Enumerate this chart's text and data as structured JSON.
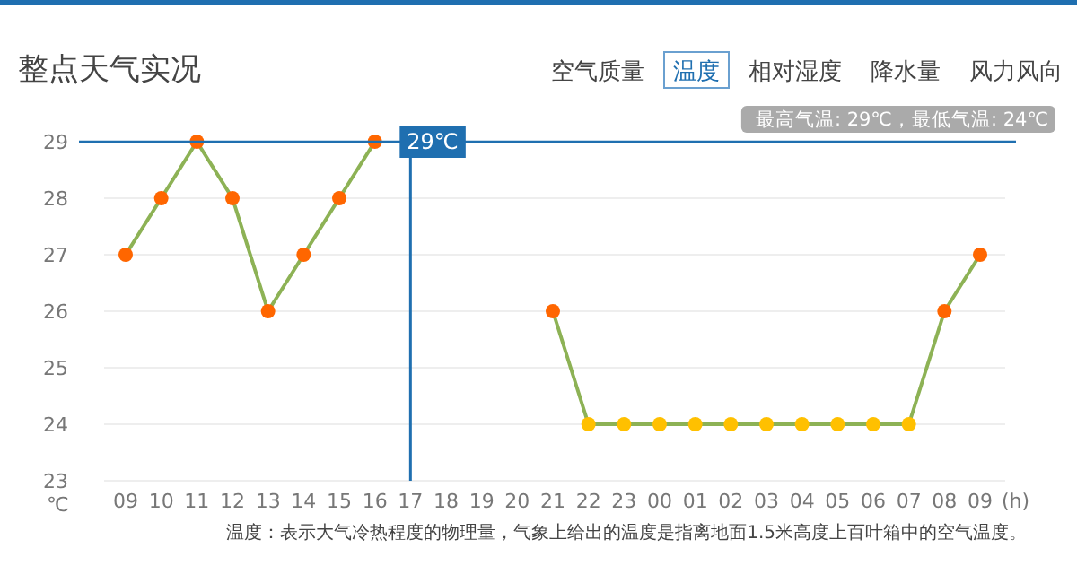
{
  "chart_data": {
    "type": "line",
    "title": "整点天气实况",
    "subtitle": "最高气温: 29℃，最低气温: 24℃",
    "annotations": [
      "空气质量",
      "温度",
      "相对湿度",
      "降水量",
      "风力风向",
      "温度：表示大气冷热程度的物理量，气象上给出的温度是指离地面1.5米高度上百叶箱中的空气温度。"
    ],
    "xlabel": "(h)",
    "ylabel": "℃",
    "categories": [
      "09",
      "10",
      "11",
      "12",
      "13",
      "14",
      "15",
      "16",
      "17",
      "18",
      "19",
      "20",
      "21",
      "22",
      "23",
      "00",
      "01",
      "02",
      "03",
      "04",
      "05",
      "06",
      "07",
      "08",
      "09"
    ],
    "series": [
      {
        "color": "#8db255",
        "values": [
          27,
          28,
          29,
          28,
          26,
          27,
          28,
          29,
          null,
          null,
          null,
          null,
          26,
          24,
          24,
          24,
          24,
          24,
          24,
          24,
          24,
          24,
          24,
          26,
          27
        ],
        "colors": [
          "#ff6600",
          "#ff6600",
          "#ff6600",
          "#ff6600",
          "#ff6600",
          "#ff6600",
          "#ff6600",
          "#ff6600",
          null,
          null,
          null,
          null,
          "#ff6600",
          "#ffc000",
          "#ffc000",
          "#ffc000",
          "#ffc000",
          "#ffc000",
          "#ffc000",
          "#ffc000",
          "#ffc000",
          "#ffc000",
          "#ffc000",
          "#ff6600",
          "#ff6600"
        ]
      }
    ],
    "ylim": [
      23,
      29
    ],
    "yticks": [
      23,
      24,
      25,
      26,
      27,
      28,
      29
    ],
    "grid": "y",
    "marker": "circle",
    "line_style": "solid",
    "ref_lines": [
      {
        "axis": "x",
        "value": "17",
        "color": "#1f6fb0"
      },
      {
        "axis": "y",
        "value": 29,
        "label": "29℃",
        "color": "#1f6fb0"
      }
    ]
  }
}
